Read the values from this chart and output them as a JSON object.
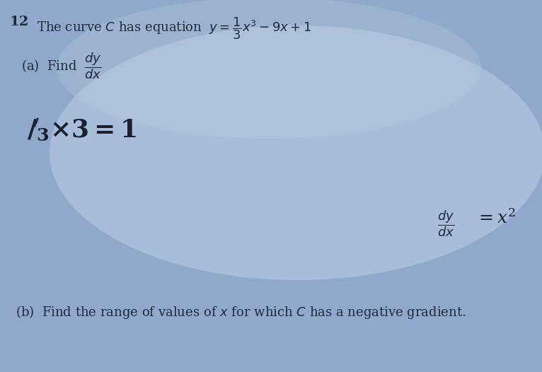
{
  "bg_color": "#8fa8cc",
  "bg_color2": "#b8c8e0",
  "text_dark": "#1e2a3a",
  "text_mid": "#2a3a5a",
  "figsize": [
    7.66,
    5.26
  ],
  "dpi": 100,
  "line1_num": "12",
  "line1_text": "The curve $C$ has equation  $y = \\dfrac{1}{3}x^3 - 9x + 1$",
  "parta": "(a)  Find  $\\dfrac{dy}{dx}$",
  "handwritten": "'$\\!/_{3}\\!\\times\\!3=1$",
  "answer_frac": "$\\dfrac{dy}{dx}$",
  "answer_eq": "$= x^2$",
  "partb": "(b)  Find the range of values of $x$ for which $C$ has a negative gradient."
}
